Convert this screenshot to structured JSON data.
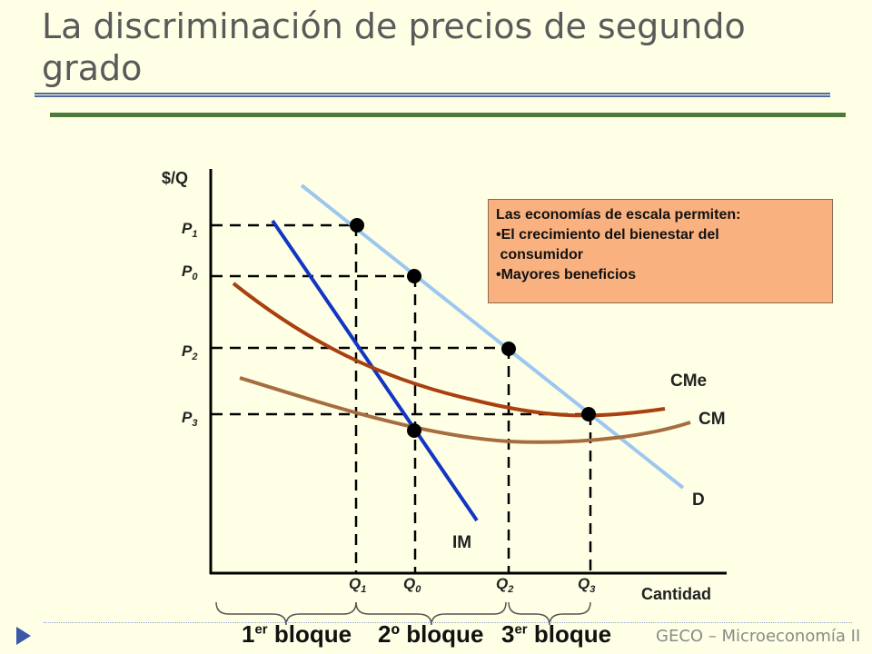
{
  "slide": {
    "title": "La discriminación de precios de segundo grado",
    "footer": "GECO – Microeconomía II"
  },
  "diagram": {
    "y_axis_label": "$/Q",
    "x_axis_label": "Cantidad",
    "price_labels": [
      {
        "base": "P",
        "sub": "1"
      },
      {
        "base": "P",
        "sub": "0"
      },
      {
        "base": "P",
        "sub": "2"
      },
      {
        "base": "P",
        "sub": "3"
      }
    ],
    "quantity_labels": [
      {
        "base": "Q",
        "sub": "1"
      },
      {
        "base": "Q",
        "sub": "0"
      },
      {
        "base": "Q",
        "sub": "2"
      },
      {
        "base": "Q",
        "sub": "3"
      }
    ],
    "curves": {
      "demand": {
        "label": "D",
        "color": "#9cc7f0"
      },
      "marginal_revenue": {
        "label": "IM",
        "color": "#1236c4"
      },
      "average_cost": {
        "label": "CMe",
        "color": "#a8400f"
      },
      "marginal_cost": {
        "label": "CM",
        "color": "#a66e40"
      }
    }
  },
  "note": {
    "heading": "Las economías de escala permiten:",
    "items": [
      "•El crecimiento del bienestar del",
      " consumidor",
      "•Mayores beneficios"
    ]
  },
  "blocks": [
    {
      "num": "1",
      "sup": "er",
      "word": " bloque"
    },
    {
      "num": "2º",
      "sup": "",
      "word": " bloque"
    },
    {
      "num": "3",
      "sup": "er",
      "word": " bloque"
    }
  ]
}
